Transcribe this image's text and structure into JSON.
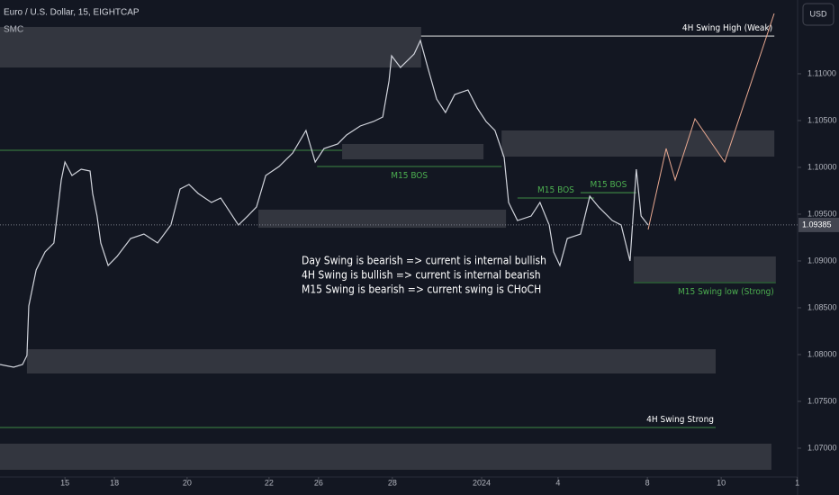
{
  "chart_data": {
    "type": "line",
    "title": "Euro / U.S. Dollar, 15, EIGHTCAP",
    "subtitle": "SMC",
    "currency": "USD",
    "xlim": [
      0,
      21.6
    ],
    "ylim": [
      1.06692,
      1.11788
    ],
    "xticks": [
      {
        "value": 1.76,
        "label": "15"
      },
      {
        "value": 3.1,
        "label": "18"
      },
      {
        "value": 5.07,
        "label": "20"
      },
      {
        "value": 7.29,
        "label": "22"
      },
      {
        "value": 8.63,
        "label": "26"
      },
      {
        "value": 10.63,
        "label": "28"
      },
      {
        "value": 13.05,
        "label": "2024"
      },
      {
        "value": 15.12,
        "label": "4"
      },
      {
        "value": 17.54,
        "label": "8"
      },
      {
        "value": 19.54,
        "label": "10"
      },
      {
        "value": 21.6,
        "label": "1"
      }
    ],
    "yticks": [
      {
        "value": 1.07,
        "label": "1.07000"
      },
      {
        "value": 1.075,
        "label": "1.07500"
      },
      {
        "value": 1.08,
        "label": "1.08000"
      },
      {
        "value": 1.085,
        "label": "1.08500"
      },
      {
        "value": 1.09,
        "label": "1.09000"
      },
      {
        "value": 1.095,
        "label": "1.09500"
      },
      {
        "value": 1.1,
        "label": "1.10000"
      },
      {
        "value": 1.105,
        "label": "1.10500"
      },
      {
        "value": 1.11,
        "label": "1.11000"
      }
    ],
    "last_price": {
      "value": 1.09385,
      "label": "1.09385"
    },
    "series": [
      {
        "color": "#d1d4dc",
        "x": [
          0,
          0.37,
          0.61,
          0.73,
          0.78,
          0.98,
          1.22,
          1.46,
          1.66,
          1.76,
          1.95,
          2.2,
          2.44,
          2.51,
          2.63,
          2.73,
          2.93,
          3.17,
          3.54,
          3.9,
          4.27,
          4.63,
          4.88,
          5.12,
          5.37,
          5.73,
          5.98,
          6.22,
          6.46,
          6.71,
          6.95,
          7.2,
          7.56,
          7.93,
          8.29,
          8.54,
          8.78,
          9.15,
          9.39,
          9.76,
          10.12,
          10.37,
          10.54,
          10.61,
          10.85,
          11.22,
          11.39,
          11.59,
          11.83,
          12.07,
          12.32,
          12.68,
          12.93,
          13.17,
          13.41,
          13.66,
          13.78,
          14.02,
          14.39,
          14.63,
          14.88,
          15,
          15.17,
          15.37,
          15.73,
          15.98,
          16.22,
          16.59,
          16.83,
          17.07,
          17.24,
          17.37,
          17.56
        ],
        "values": [
          1.07894,
          1.07865,
          1.07894,
          1.0799,
          1.08519,
          1.08904,
          1.09096,
          1.09192,
          1.09865,
          1.10057,
          1.09913,
          1.0998,
          1.09961,
          1.09721,
          1.0948,
          1.09192,
          1.08952,
          1.09048,
          1.0924,
          1.09288,
          1.09192,
          1.09384,
          1.09769,
          1.09817,
          1.09721,
          1.09625,
          1.09673,
          1.09529,
          1.09384,
          1.0948,
          1.09577,
          1.09913,
          1.10009,
          1.10153,
          1.10394,
          1.10057,
          1.10201,
          1.1025,
          1.10346,
          1.10442,
          1.1049,
          1.10538,
          1.10923,
          1.11192,
          1.11067,
          1.11211,
          1.11355,
          1.11067,
          1.1073,
          1.10586,
          1.10778,
          1.10827,
          1.10634,
          1.1049,
          1.10394,
          1.10105,
          1.09625,
          1.09432,
          1.0948,
          1.09625,
          1.09384,
          1.09096,
          1.08952,
          1.0924,
          1.09288,
          1.09692,
          1.09577,
          1.09432,
          1.09384,
          1.09,
          1.0998,
          1.0948,
          1.09384
        ]
      }
    ],
    "zones": [
      {
        "x": [
          0,
          11.41
        ],
        "y": [
          1.11067,
          1.115
        ]
      },
      {
        "x": [
          9.27,
          13.1
        ],
        "y": [
          1.10086,
          1.1025
        ]
      },
      {
        "x": [
          13.59,
          20.98
        ],
        "y": [
          1.10115,
          1.10394
        ]
      },
      {
        "x": [
          7,
          13.71
        ],
        "y": [
          1.09355,
          1.09548
        ]
      },
      {
        "x": [
          17.17,
          21.02
        ],
        "y": [
          1.08778,
          1.09048
        ]
      },
      {
        "x": [
          0.73,
          19.39
        ],
        "y": [
          1.07798,
          1.08057
        ]
      },
      {
        "x": [
          0,
          20.9
        ],
        "y": [
          1.06769,
          1.07048
        ]
      }
    ],
    "levels": [
      {
        "label": "4H Swing High (Weak)",
        "value": 1.11403,
        "x": [
          11.41,
          20.98
        ],
        "color": "#ffffff"
      },
      {
        "value": 1.10182,
        "x": [
          0,
          9.27
        ],
        "color": "#4caf50"
      },
      {
        "label": "M15 BOS",
        "value": 1.10009,
        "x": [
          8.59,
          13.59
        ],
        "color": "#4caf50"
      },
      {
        "label": "M15 BOS",
        "value": 1.09673,
        "x": [
          14.02,
          16.1
        ],
        "color": "#4caf50"
      },
      {
        "label": "M15 BOS",
        "value": 1.0973,
        "x": [
          15.73,
          17.24
        ],
        "color": "#4caf50"
      },
      {
        "label": "M15 Swing low (Strong)",
        "value": 1.08769,
        "x": [
          17.17,
          21.02
        ],
        "color": "#4caf50"
      },
      {
        "label": "4H Swing Strong",
        "value": 1.07221,
        "x": [
          0,
          19.39
        ],
        "color": "#4caf50"
      }
    ],
    "notes": [
      "Day Swing is bearish => current is internal bullish",
      "4H Swing is bullish => current is internal bearish",
      "M15 Swing is bearish  => current swing is CHoCH"
    ]
  }
}
